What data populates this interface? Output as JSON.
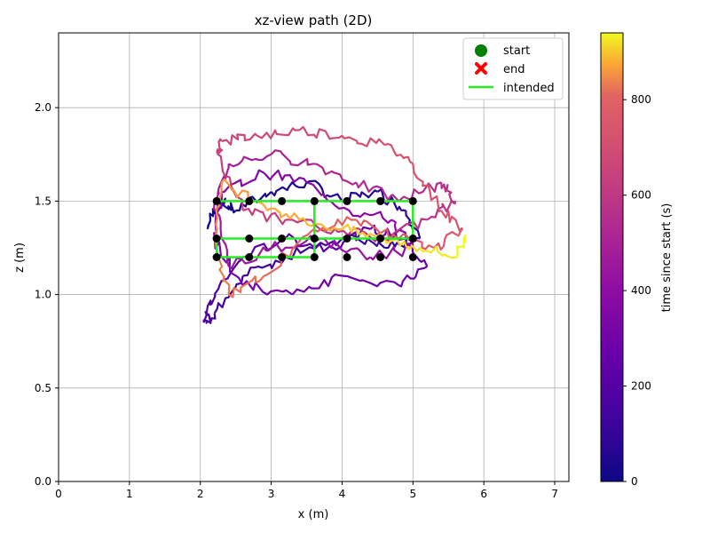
{
  "chart_data": {
    "type": "line",
    "title": "xz-view path (2D)",
    "xlabel": "x (m)",
    "ylabel": "z (m)",
    "xlim": [
      0,
      7.2
    ],
    "ylim": [
      0,
      2.4
    ],
    "xticks": [
      0,
      1,
      2,
      3,
      4,
      5,
      6,
      7
    ],
    "yticks": [
      0.0,
      0.5,
      1.0,
      1.5,
      2.0
    ],
    "ytick_labels": [
      "0.0",
      "0.5",
      "1.0",
      "1.5",
      "2.0"
    ],
    "grid": true,
    "legend": {
      "position": "top-right",
      "entries": [
        {
          "label": "start",
          "marker": "circle",
          "color": "#008000"
        },
        {
          "label": "end",
          "marker": "x",
          "color": "#ff0000"
        },
        {
          "label": "intended",
          "marker": "line",
          "color": "#22ee22"
        }
      ]
    },
    "colorbar": {
      "label": "time since start (s)",
      "range": [
        0,
        940
      ],
      "ticks": [
        0,
        200,
        400,
        600,
        800
      ],
      "colormap": "plasma"
    },
    "waypoints": {
      "x": [
        2.23,
        2.69,
        3.15,
        3.61,
        4.07,
        4.54,
        5.0
      ],
      "z": [
        1.5,
        1.3,
        1.2
      ]
    },
    "intended_path": {
      "x": [
        2.23,
        5.0,
        5.0,
        2.23,
        2.23,
        3.61,
        3.61,
        5.0
      ],
      "z": [
        1.5,
        1.5,
        1.3,
        1.3,
        1.2,
        1.2,
        1.5,
        1.5
      ]
    },
    "path": {
      "x": [
        2.1,
        2.25,
        2.5,
        3.0,
        3.5,
        4.0,
        4.5,
        4.9,
        5.1,
        4.6,
        4.0,
        3.2,
        2.6,
        2.2,
        2.05,
        2.2,
        2.6,
        3.2,
        3.8,
        4.4,
        4.9,
        5.2,
        4.8,
        4.0,
        3.3,
        2.6,
        2.2,
        2.3,
        2.9,
        3.5,
        4.1,
        4.7,
        5.0,
        4.4,
        3.7,
        3.0,
        2.4,
        2.2,
        2.4,
        3.0,
        3.6,
        4.2,
        4.8,
        5.4,
        5.6,
        5.2,
        4.6,
        3.9,
        3.2,
        2.6,
        2.25,
        2.3,
        2.8,
        3.4,
        4.0,
        4.6,
        5.0,
        5.4,
        5.7,
        5.3,
        4.8,
        4.2,
        3.6,
        2.9,
        2.4,
        2.2,
        2.3,
        2.8,
        3.4,
        4.0,
        4.6,
        5.1,
        5.6,
        5.75
      ],
      "z": [
        1.35,
        1.5,
        1.45,
        1.55,
        1.6,
        1.5,
        1.55,
        1.45,
        1.3,
        1.25,
        1.3,
        1.2,
        1.1,
        0.9,
        0.85,
        1.0,
        1.2,
        1.3,
        1.25,
        1.35,
        1.3,
        1.15,
        1.05,
        1.1,
        1.0,
        1.05,
        1.3,
        1.55,
        1.65,
        1.6,
        1.45,
        1.4,
        1.25,
        1.2,
        1.3,
        1.25,
        1.15,
        1.5,
        1.7,
        1.75,
        1.7,
        1.6,
        1.5,
        1.6,
        1.5,
        1.4,
        1.3,
        1.35,
        1.4,
        1.45,
        1.75,
        1.82,
        1.85,
        1.88,
        1.85,
        1.8,
        1.7,
        1.45,
        1.35,
        1.25,
        1.3,
        1.4,
        1.35,
        1.1,
        1.0,
        1.3,
        1.6,
        1.5,
        1.4,
        1.35,
        1.3,
        1.25,
        1.2,
        1.32
      ]
    }
  }
}
